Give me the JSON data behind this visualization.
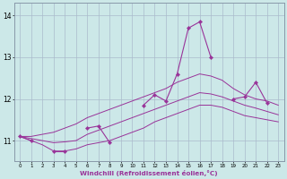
{
  "xlabel": "Windchill (Refroidissement éolien,°C)",
  "bg_color": "#cce8e8",
  "grid_color": "#aabbcc",
  "line_color": "#993399",
  "hours": [
    0,
    1,
    2,
    3,
    4,
    5,
    6,
    7,
    8,
    9,
    10,
    11,
    12,
    13,
    14,
    15,
    16,
    17,
    18,
    19,
    20,
    21,
    22,
    23
  ],
  "line_main": [
    11.1,
    11.0,
    null,
    10.75,
    10.75,
    null,
    11.3,
    11.35,
    10.95,
    null,
    null,
    11.85,
    12.1,
    11.95,
    12.6,
    13.7,
    13.85,
    13.0,
    null,
    12.0,
    12.05,
    12.4,
    11.9,
    null
  ],
  "line_upper": [
    11.1,
    11.1,
    11.15,
    11.2,
    11.3,
    11.4,
    11.55,
    11.65,
    11.75,
    11.85,
    11.95,
    12.05,
    12.15,
    12.25,
    12.4,
    12.5,
    12.6,
    12.55,
    12.45,
    12.25,
    12.1,
    12.0,
    11.95,
    11.85
  ],
  "line_lower": [
    11.1,
    11.0,
    10.9,
    10.75,
    10.75,
    10.8,
    10.9,
    10.95,
    11.0,
    11.1,
    11.2,
    11.3,
    11.45,
    11.55,
    11.65,
    11.75,
    11.85,
    11.85,
    11.8,
    11.7,
    11.6,
    11.55,
    11.5,
    11.45
  ],
  "line_mid": [
    11.1,
    11.05,
    11.0,
    10.95,
    10.97,
    11.0,
    11.15,
    11.25,
    11.35,
    11.45,
    11.55,
    11.65,
    11.75,
    11.85,
    11.95,
    12.05,
    12.15,
    12.12,
    12.05,
    11.95,
    11.85,
    11.78,
    11.7,
    11.62
  ],
  "ylim": [
    10.5,
    14.3
  ],
  "yticks": [
    11,
    12,
    13,
    14
  ],
  "xlim": [
    -0.5,
    23.5
  ]
}
